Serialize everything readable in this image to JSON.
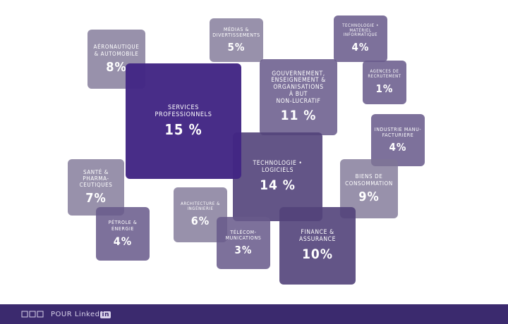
{
  "sectors": [
    {
      "id": "aero",
      "label": [
        "AÉRONAUTIQUE",
        "& AUTOMOBILE"
      ],
      "value": "8%",
      "fill": "light"
    },
    {
      "id": "media",
      "label": [
        "MÉDIAS &",
        "DIVERTISSEMENTS"
      ],
      "value": "5%",
      "fill": "light"
    },
    {
      "id": "tech-hw",
      "label": [
        "TECHNOLOGIE •",
        "MATÉRIEL",
        "INFORMATIQUE"
      ],
      "value": "4%",
      "fill": "mid"
    },
    {
      "id": "gov",
      "label": [
        "GOUVERNEMENT,",
        "ENSEIGNEMENT &",
        "ORGANISATIONS",
        "À BUT",
        "NON-LUCRATIF"
      ],
      "value": "11 %",
      "fill": "mid"
    },
    {
      "id": "recruit",
      "label": [
        "AGENCES DE",
        "RECRUTEMENT"
      ],
      "value": "1%",
      "fill": "mid"
    },
    {
      "id": "services",
      "label": [
        "SERVICES",
        "PROFESSIONNELS"
      ],
      "value": "15 %",
      "fill": "royal"
    },
    {
      "id": "industry",
      "label": [
        "INDUSTRIE MANU-",
        "FACTURIÈRE"
      ],
      "value": "4%",
      "fill": "mid"
    },
    {
      "id": "software",
      "label": [
        "TECHNOLOGIE •",
        "LOGICIELS"
      ],
      "value": "14 %",
      "fill": "dark"
    },
    {
      "id": "health",
      "label": [
        "SANTÉ & PHARMA-",
        "CEUTIQUES"
      ],
      "value": "7%",
      "fill": "light"
    },
    {
      "id": "consumer",
      "label": [
        "BIENS DE",
        "CONSOMMATION"
      ],
      "value": "9%",
      "fill": "light"
    },
    {
      "id": "archi",
      "label": [
        "ARCHITECTURE &",
        "INGÉNIERIE"
      ],
      "value": "6%",
      "fill": "light"
    },
    {
      "id": "oil",
      "label": [
        "PÉTROLE &",
        "ÉNERGIE"
      ],
      "value": "4%",
      "fill": "mid"
    },
    {
      "id": "telecom",
      "label": [
        "TÉLÉCOM-",
        "MUNICATIONS"
      ],
      "value": "3%",
      "fill": "mid"
    },
    {
      "id": "finance",
      "label": [
        "FINANCE &",
        "ASSURANCE"
      ],
      "value": "10%",
      "fill": "dark"
    }
  ],
  "footer": {
    "brand_text": "POUR",
    "brand_badge": "Linked",
    "brand_in": "in"
  }
}
